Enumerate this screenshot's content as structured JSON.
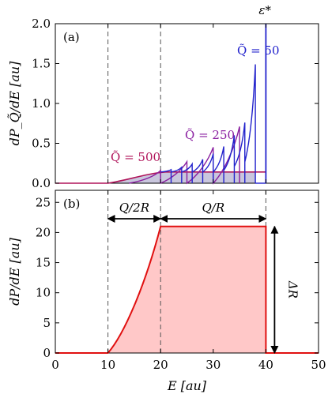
{
  "chart_data": [
    {
      "panel": "(a)",
      "type": "line",
      "ylabel": "dP_Q̃/dE [au]",
      "xlim": [
        0,
        50
      ],
      "ylim": [
        0,
        2.0
      ],
      "yticks": [
        "0.0",
        "0.5",
        "1.0",
        "1.5",
        "2.0"
      ],
      "epsilon_label": "ε*",
      "epsilon_x": 40,
      "reference_lines_x": [
        10,
        20,
        40
      ],
      "colors": {
        "Q500": "#b0145a",
        "Q250": "#8a1fa0",
        "Q50": "#2222cc",
        "fill": "#c9c6dd"
      },
      "annotations": [
        {
          "text": "Q̃ = 500",
          "color": "#b0145a"
        },
        {
          "text": "Q̃ = 250",
          "color": "#8a1fa0"
        },
        {
          "text": "Q̃ = 50",
          "color": "#2222cc"
        }
      ],
      "series": [
        {
          "name": "Q̃ = 500",
          "x": [
            10,
            20,
            30,
            40
          ],
          "y": [
            0,
            0.14,
            0.14,
            0.14
          ]
        },
        {
          "name": "Q̃ = 250",
          "x": [
            15,
            20,
            25,
            30,
            35
          ],
          "y": [
            0,
            0.16,
            0.27,
            0.45,
            0.71
          ]
        },
        {
          "name": "Q̃ = 50",
          "x": [
            22,
            24,
            26,
            28,
            30,
            32,
            34,
            36,
            38
          ],
          "y": [
            0.17,
            0.2,
            0.24,
            0.3,
            0.37,
            0.46,
            0.6,
            0.76,
            1.49
          ]
        }
      ]
    },
    {
      "panel": "(b)",
      "type": "area",
      "ylabel": "dP/dE [au]",
      "xlabel": "E [au]",
      "xlim": [
        0,
        50
      ],
      "ylim": [
        0,
        27
      ],
      "xticks": [
        "0",
        "10",
        "20",
        "30",
        "40",
        "50"
      ],
      "yticks": [
        "0",
        "5",
        "10",
        "15",
        "20",
        "25"
      ],
      "reference_lines_x": [
        10,
        20,
        40
      ],
      "colors": {
        "line": "#e01010",
        "fill": "#ffc8c8"
      },
      "annotations": {
        "left_arrow": "Q/2R",
        "right_arrow": "Q/R",
        "height_arrow": "ΔR"
      },
      "series": [
        {
          "x": [
            0,
            10,
            12,
            14,
            16,
            18,
            20,
            40,
            40,
            50
          ],
          "y": [
            0,
            0,
            1.5,
            4.8,
            9.4,
            15.0,
            21,
            21,
            0,
            0
          ]
        }
      ]
    }
  ]
}
